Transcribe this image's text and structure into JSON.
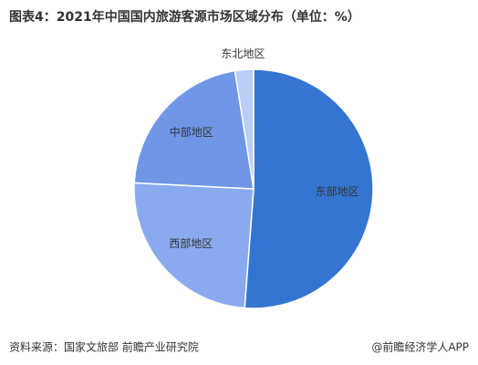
{
  "chart_data": {
    "type": "pie",
    "title": "图表4：2021年中国国内旅游客源市场区域分布（单位：%）",
    "categories": [
      "东部地区",
      "西部地区",
      "中部地区",
      "东北地区"
    ],
    "values": [
      51.2,
      24.6,
      21.7,
      2.5
    ],
    "colors": [
      "#3475d1",
      "#8aaaf0",
      "#6f97e6",
      "#b9cdf6"
    ],
    "source": "资料来源：国家文旅部 前瞻产业研究院",
    "credit": "@前瞻经济学人APP"
  }
}
